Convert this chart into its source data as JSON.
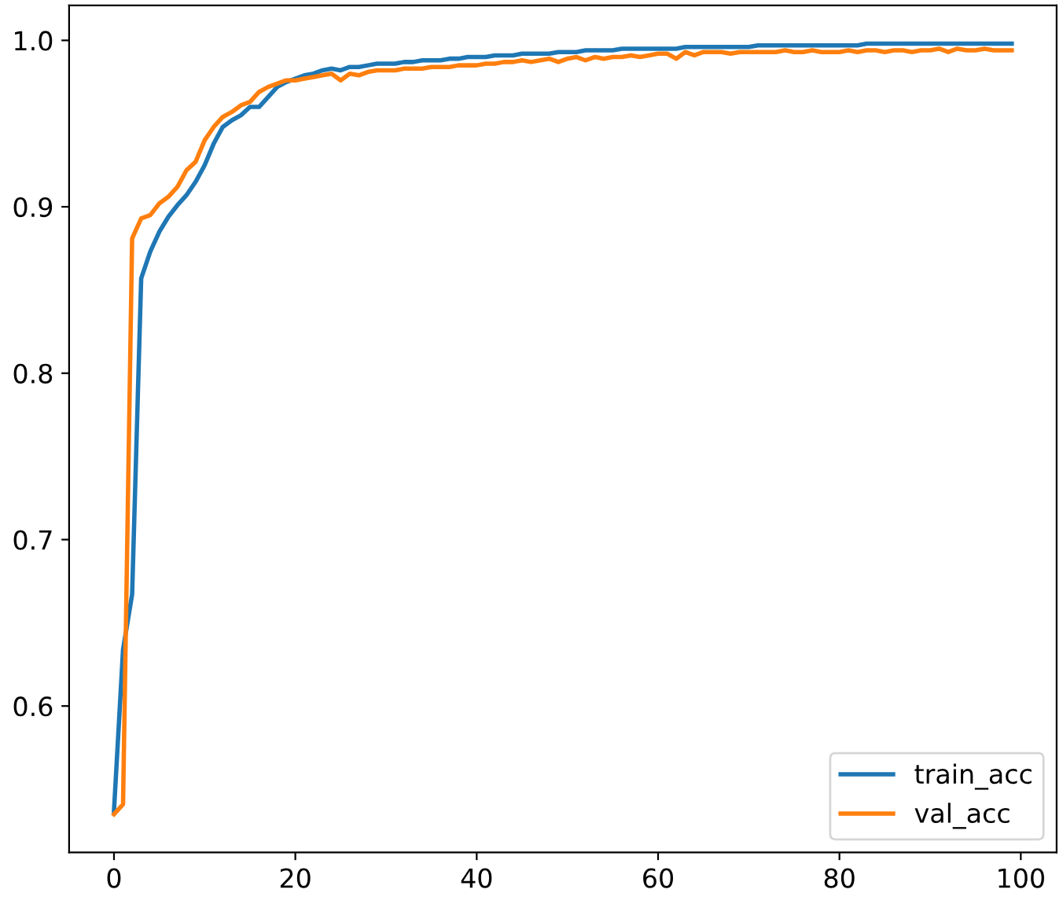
{
  "chart_data": {
    "type": "line",
    "x": [
      0,
      1,
      2,
      3,
      4,
      5,
      6,
      7,
      8,
      9,
      10,
      11,
      12,
      13,
      14,
      15,
      16,
      17,
      18,
      19,
      20,
      21,
      22,
      23,
      24,
      25,
      26,
      27,
      28,
      29,
      30,
      31,
      32,
      33,
      34,
      35,
      36,
      37,
      38,
      39,
      40,
      41,
      42,
      43,
      44,
      45,
      46,
      47,
      48,
      49,
      50,
      51,
      52,
      53,
      54,
      55,
      56,
      57,
      58,
      59,
      60,
      61,
      62,
      63,
      64,
      65,
      66,
      67,
      68,
      69,
      70,
      71,
      72,
      73,
      74,
      75,
      76,
      77,
      78,
      79,
      80,
      81,
      82,
      83,
      84,
      85,
      86,
      87,
      88,
      89,
      90,
      91,
      92,
      93,
      94,
      95,
      96,
      97,
      98,
      99
    ],
    "series": [
      {
        "name": "train_acc",
        "color": "#1f77b4",
        "values": [
          0.537,
          0.634,
          0.667,
          0.857,
          0.873,
          0.885,
          0.894,
          0.901,
          0.907,
          0.915,
          0.925,
          0.938,
          0.948,
          0.952,
          0.955,
          0.96,
          0.96,
          0.966,
          0.972,
          0.975,
          0.977,
          0.979,
          0.98,
          0.982,
          0.983,
          0.982,
          0.984,
          0.984,
          0.985,
          0.986,
          0.986,
          0.986,
          0.987,
          0.987,
          0.988,
          0.988,
          0.988,
          0.989,
          0.989,
          0.99,
          0.99,
          0.99,
          0.991,
          0.991,
          0.991,
          0.992,
          0.992,
          0.992,
          0.992,
          0.993,
          0.993,
          0.993,
          0.994,
          0.994,
          0.994,
          0.994,
          0.995,
          0.995,
          0.995,
          0.995,
          0.995,
          0.995,
          0.995,
          0.996,
          0.996,
          0.996,
          0.996,
          0.996,
          0.996,
          0.996,
          0.996,
          0.997,
          0.997,
          0.997,
          0.997,
          0.997,
          0.997,
          0.997,
          0.997,
          0.997,
          0.997,
          0.997,
          0.997,
          0.998,
          0.998,
          0.998,
          0.998,
          0.998,
          0.998,
          0.998,
          0.998,
          0.998,
          0.998,
          0.998,
          0.998,
          0.998,
          0.998,
          0.998,
          0.998,
          0.998
        ]
      },
      {
        "name": "val_acc",
        "color": "#ff7f0e",
        "values": [
          0.535,
          0.541,
          0.881,
          0.893,
          0.895,
          0.902,
          0.906,
          0.912,
          0.922,
          0.927,
          0.94,
          0.948,
          0.954,
          0.957,
          0.961,
          0.963,
          0.969,
          0.972,
          0.974,
          0.976,
          0.976,
          0.977,
          0.978,
          0.979,
          0.98,
          0.976,
          0.98,
          0.979,
          0.981,
          0.982,
          0.982,
          0.982,
          0.983,
          0.983,
          0.983,
          0.984,
          0.984,
          0.984,
          0.985,
          0.985,
          0.985,
          0.986,
          0.986,
          0.987,
          0.987,
          0.988,
          0.987,
          0.988,
          0.989,
          0.987,
          0.989,
          0.99,
          0.988,
          0.99,
          0.989,
          0.99,
          0.99,
          0.991,
          0.99,
          0.991,
          0.992,
          0.992,
          0.989,
          0.993,
          0.991,
          0.993,
          0.993,
          0.993,
          0.992,
          0.993,
          0.993,
          0.993,
          0.993,
          0.993,
          0.994,
          0.993,
          0.993,
          0.994,
          0.993,
          0.993,
          0.993,
          0.994,
          0.993,
          0.994,
          0.994,
          0.993,
          0.994,
          0.994,
          0.993,
          0.994,
          0.994,
          0.995,
          0.993,
          0.995,
          0.994,
          0.994,
          0.995,
          0.994,
          0.994,
          0.994
        ]
      }
    ],
    "xlim": [
      -4.95,
      103.95
    ],
    "ylim": [
      0.512,
      1.021
    ],
    "xticks": [
      0,
      20,
      40,
      60,
      80,
      100
    ],
    "yticks": [
      {
        "value": 0.6,
        "label": "0.6"
      },
      {
        "value": 0.7,
        "label": "0.7"
      },
      {
        "value": 0.8,
        "label": "0.8"
      },
      {
        "value": 0.9,
        "label": "0.9"
      },
      {
        "value": 1.0,
        "label": "1.0"
      }
    ],
    "legend": "lower right",
    "grid": false,
    "marker": "none",
    "line_style": "solid"
  }
}
